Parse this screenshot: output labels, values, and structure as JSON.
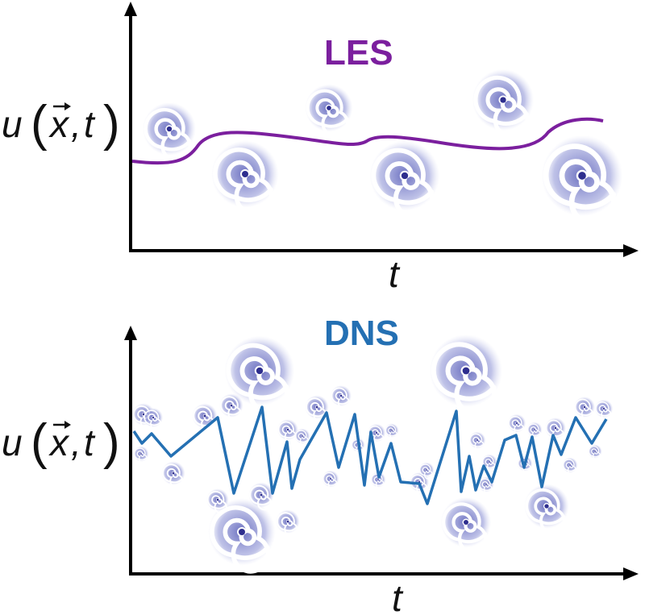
{
  "colors": {
    "axis": "#000000",
    "les": "#7b1f9e",
    "dns": "#2470b3",
    "eddy_dark": "#3a3a9a",
    "eddy_mid": "#6c72c4",
    "eddy_light": "#b9bde6"
  },
  "les_panel": {
    "title": "LES",
    "x_axis_label": "t",
    "y_axis_label": {
      "var": "u",
      "vector": "x",
      "time": "t"
    }
  },
  "dns_panel": {
    "title": "DNS",
    "x_axis_label": "t",
    "y_axis_label": {
      "var": "u",
      "vector": "x",
      "time": "t"
    }
  },
  "icons": {
    "eddy": "spiral-eddy-icon",
    "arrowhead": "arrowhead"
  }
}
